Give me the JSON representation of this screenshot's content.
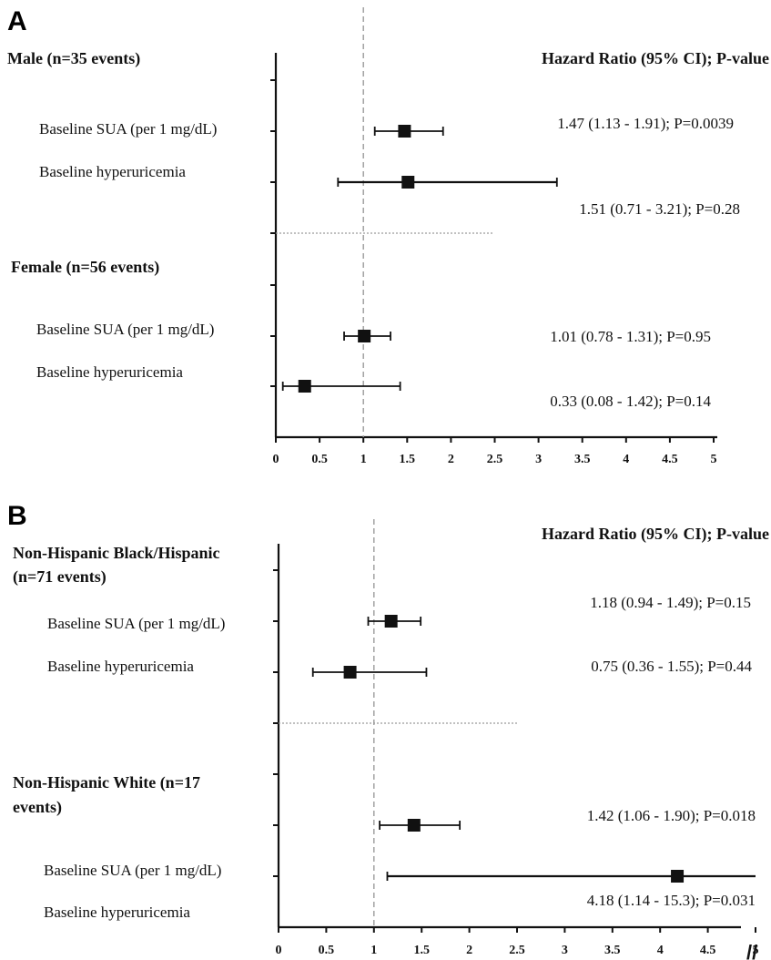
{
  "chart_data": [
    {
      "type": "forest",
      "panel_label": "A",
      "header": "Hazard Ratio (95% CI);   P-value",
      "x_ticks": [
        "0",
        "0.5",
        "1",
        "1.5",
        "2",
        "2.5",
        "3",
        "3.5",
        "4",
        "4.5",
        "5"
      ],
      "xlim": [
        0,
        5
      ],
      "reference_line": 1,
      "axis_break": "",
      "groups": [
        {
          "name": "Male (n=35 events)",
          "rows": [
            {
              "label": "Baseline  SUA (per 1 mg/dL)",
              "hr": 1.47,
              "lo": 1.13,
              "hi": 1.91,
              "result": "1.47 (1.13 - 1.91);   P=0.0039"
            },
            {
              "label": "Baseline hyperuricemia",
              "hr": 1.51,
              "lo": 0.71,
              "hi": 3.21,
              "result": "1.51 (0.71 - 3.21);   P=0.28"
            }
          ]
        },
        {
          "name": "Female (n=56 events)",
          "rows": [
            {
              "label": "Baseline  SUA (per 1 mg/dL)",
              "hr": 1.01,
              "lo": 0.78,
              "hi": 1.31,
              "result": "1.01 (0.78 - 1.31);   P=0.95"
            },
            {
              "label": "Baseline hyperuricemia",
              "hr": 0.33,
              "lo": 0.08,
              "hi": 1.42,
              "result": "0.33 (0.08 - 1.42);   P=0.14"
            }
          ]
        }
      ]
    },
    {
      "type": "forest",
      "panel_label": "B",
      "header": "Hazard Ratio (95% CI);   P-value",
      "x_ticks": [
        "0",
        "0.5",
        "1",
        "1.5",
        "2",
        "2.5",
        "3",
        "3.5",
        "4",
        "4.5",
        "5"
      ],
      "xlim": [
        0,
        5
      ],
      "reference_line": 1,
      "axis_break": "//",
      "groups": [
        {
          "name": "Non-Hispanic Black/Hispanic (n=71 events)",
          "name_lines": [
            "Non-Hispanic Black/Hispanic",
            "(n=71 events)"
          ],
          "rows": [
            {
              "label": "Baseline  SUA (per 1 mg/dL)",
              "hr": 1.18,
              "lo": 0.94,
              "hi": 1.49,
              "result": "1.18 (0.94 - 1.49);   P=0.15"
            },
            {
              "label": "Baseline hyperuricemia",
              "hr": 0.75,
              "lo": 0.36,
              "hi": 1.55,
              "result": "0.75 (0.36 - 1.55);   P=0.44"
            }
          ]
        },
        {
          "name": "Non-Hispanic White (n=17 events)",
          "name_lines": [
            "Non-Hispanic White (n=17",
            "events)"
          ],
          "rows": [
            {
              "label": "Baseline  SUA (per 1 mg/dL)",
              "hr": 1.42,
              "lo": 1.06,
              "hi": 1.9,
              "result": "1.42 (1.06 - 1.90);   P=0.018"
            },
            {
              "label": "Baseline hyperuricemia",
              "hr": 4.18,
              "lo": 1.14,
              "hi": 15.3,
              "result": "4.18 (1.14 - 15.3);   P=0.031"
            }
          ]
        }
      ]
    }
  ]
}
